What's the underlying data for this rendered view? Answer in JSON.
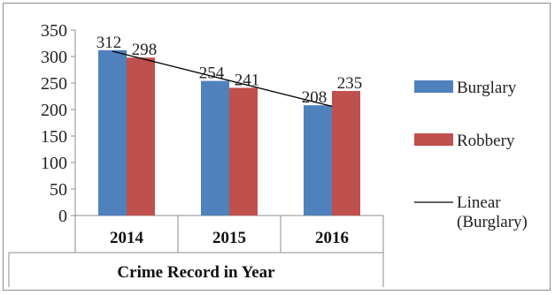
{
  "chart_data": {
    "type": "bar",
    "title": "",
    "xlabel": "Crime Record in Year",
    "ylabel": "",
    "categories": [
      "2014",
      "2015",
      "2016"
    ],
    "series": [
      {
        "name": "Burglary",
        "values": [
          312,
          254,
          208
        ],
        "color": "#4f81bd"
      },
      {
        "name": "Robbery",
        "values": [
          298,
          241,
          235
        ],
        "color": "#c0504d"
      }
    ],
    "trendline": {
      "name": "Linear\n(Burglary)",
      "lines": [
        "Linear",
        "(Burglary)"
      ],
      "series": "Burglary",
      "color": "#000000"
    },
    "ylim": [
      0,
      350
    ],
    "yticks": [
      0,
      50,
      100,
      150,
      200,
      250,
      300,
      350
    ],
    "grid": false,
    "legend_position": "right"
  }
}
